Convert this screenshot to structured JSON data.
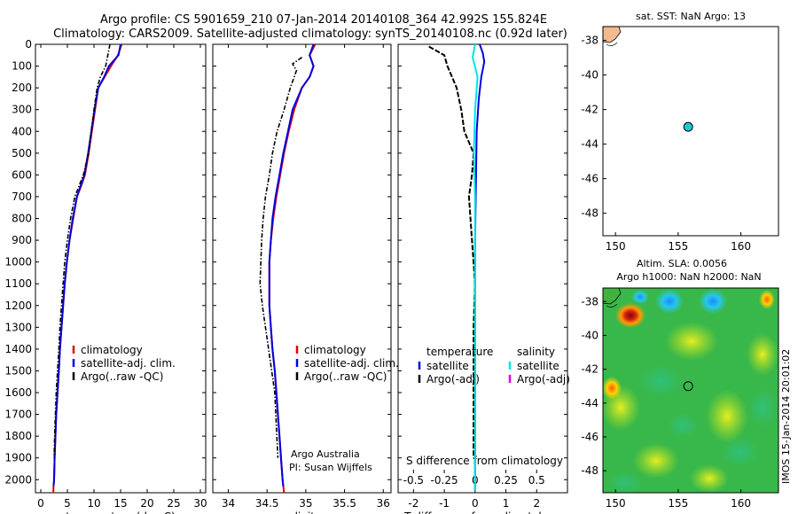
{
  "title": {
    "line1": "Argo profile: CS 5901659_210 07-Jan-2014 20140108_364 42.992S 155.824E",
    "line2": "Climatology: CARS2009. Satellite-adjusted climatology: synTS_20140108.nc (0.92d later)"
  },
  "side_label": "IMOS 15-Jan-2014 20:01:02",
  "credit": {
    "line1": "Argo Australia",
    "line2": "PI: Susan Wijffels"
  },
  "colors": {
    "climatology": "#e00000",
    "satellite": "#0000e0",
    "argo": "#000000",
    "cyan": "#00e5e5",
    "magenta": "#e000e0",
    "land": "#f4b98f"
  },
  "chart_data": [
    {
      "type": "line",
      "xlabel": "temperature (deg C)",
      "ylabel": "",
      "xlim": [
        -1,
        31
      ],
      "ylim": [
        2060,
        0
      ],
      "xticks": [
        0,
        5,
        10,
        15,
        20,
        25,
        30
      ],
      "yticks": [
        0,
        100,
        200,
        300,
        400,
        500,
        600,
        700,
        800,
        900,
        1000,
        1100,
        1200,
        1300,
        1400,
        1500,
        1600,
        1700,
        1800,
        1900,
        2000
      ],
      "legend": [
        "climatology",
        "satellite-adj. clim.",
        "Argo(..raw -QC)"
      ],
      "series": [
        {
          "name": "climatology",
          "x": [
            15.2,
            14.5,
            13.2,
            12.0,
            10.8,
            10.2,
            9.6,
            9.0,
            8.3,
            7.6,
            6.8,
            6.1,
            5.4,
            4.9,
            4.5,
            4.2,
            3.9,
            3.6,
            3.4,
            3.15,
            2.9,
            2.75,
            2.6,
            2.5,
            2.4,
            2.35
          ],
          "y": [
            0,
            50,
            100,
            150,
            200,
            300,
            400,
            500,
            600,
            650,
            700,
            800,
            900,
            1000,
            1100,
            1200,
            1300,
            1400,
            1500,
            1600,
            1700,
            1800,
            1900,
            2000,
            2030,
            2060
          ]
        },
        {
          "name": "satellite-adj. clim.",
          "x": [
            15.0,
            14.6,
            12.8,
            11.9,
            10.8,
            10.1,
            9.5,
            8.9,
            8.2,
            7.5,
            6.8,
            6.0,
            5.4,
            4.9,
            4.5,
            4.2,
            3.9,
            3.6,
            3.4,
            3.15,
            2.9,
            2.75,
            2.6,
            2.5,
            2.4
          ],
          "y": [
            0,
            50,
            100,
            150,
            200,
            300,
            400,
            500,
            600,
            650,
            700,
            800,
            900,
            1000,
            1100,
            1200,
            1300,
            1400,
            1500,
            1600,
            1700,
            1800,
            1900,
            2000,
            2030
          ]
        },
        {
          "name": "Argo(..raw -QC)",
          "x": [
            13.0,
            12.6,
            12.2,
            11.2,
            10.6,
            10.0,
            9.5,
            9.0,
            8.5,
            8.0,
            7.2,
            6.4,
            5.6,
            5.0,
            4.5,
            4.2,
            3.9,
            3.6,
            3.4,
            3.15,
            2.9,
            2.75,
            2.6,
            2.5
          ],
          "y": [
            0,
            50,
            100,
            150,
            200,
            300,
            400,
            500,
            550,
            600,
            650,
            700,
            800,
            900,
            1000,
            1100,
            1200,
            1300,
            1400,
            1500,
            1600,
            1700,
            1800,
            1900
          ]
        }
      ]
    },
    {
      "type": "line",
      "xlabel": "salinity",
      "ylabel": "",
      "xlim": [
        33.8,
        36.1
      ],
      "ylim": [
        2060,
        0
      ],
      "xticks": [
        34,
        34.5,
        35,
        35.5,
        36
      ],
      "xticklabels": [
        "34",
        "34.5",
        "35",
        "35.5",
        "36"
      ],
      "legend": [
        "climatology",
        "satellite-adj. clim.",
        "Argo(..raw -QC)"
      ],
      "series": [
        {
          "name": "climatology",
          "x": [
            35.12,
            35.05,
            35.1,
            35.05,
            34.95,
            34.85,
            34.78,
            34.72,
            34.67,
            34.62,
            34.58,
            34.55,
            34.53,
            34.53,
            34.53,
            34.55,
            34.57,
            34.6,
            34.62,
            34.64,
            34.66,
            34.68,
            34.7,
            34.71,
            34.72
          ],
          "y": [
            0,
            50,
            100,
            150,
            200,
            300,
            400,
            500,
            600,
            700,
            800,
            900,
            1000,
            1100,
            1200,
            1300,
            1400,
            1500,
            1600,
            1700,
            1800,
            1900,
            2000,
            2030,
            2060
          ]
        },
        {
          "name": "satellite-adj. clim.",
          "x": [
            35.1,
            35.05,
            35.1,
            35.05,
            34.95,
            34.83,
            34.77,
            34.71,
            34.66,
            34.61,
            34.57,
            34.55,
            34.53,
            34.53,
            34.53,
            34.55,
            34.57,
            34.6,
            34.62,
            34.64,
            34.66,
            34.68,
            34.7,
            34.71
          ],
          "y": [
            0,
            50,
            100,
            150,
            200,
            300,
            400,
            500,
            600,
            700,
            800,
            900,
            1000,
            1100,
            1200,
            1300,
            1400,
            1500,
            1600,
            1700,
            1800,
            1900,
            2000,
            2030
          ]
        },
        {
          "name": "Argo(..raw -QC)",
          "x": [
            34.95,
            34.83,
            34.88,
            34.8,
            34.72,
            34.63,
            34.57,
            34.53,
            34.48,
            34.45,
            34.43,
            34.42,
            34.41,
            34.44,
            34.48,
            34.52,
            34.56,
            34.6,
            34.64
          ],
          "y": [
            60,
            90,
            120,
            200,
            300,
            400,
            500,
            600,
            700,
            800,
            900,
            1000,
            1100,
            1200,
            1300,
            1400,
            1500,
            1600,
            1900
          ]
        }
      ]
    },
    {
      "type": "line",
      "xlabel": "T difference from climatology",
      "x2label": "S difference from climatology",
      "ylabel": "",
      "xlim": [
        -2.5,
        3
      ],
      "x2lim": [
        -0.625,
        0.75
      ],
      "ylim": [
        2060,
        0
      ],
      "xticks": [
        -2,
        -1,
        0,
        1,
        2
      ],
      "x2ticks": [
        -0.5,
        -0.25,
        0,
        0.25,
        0.5
      ],
      "x2ticklabels": [
        "-0.5",
        "-0.25",
        "0",
        "0.25",
        "0.5"
      ],
      "legend_temperature": {
        "heading": "temperature",
        "items": [
          "satellite",
          "Argo(-adj)"
        ]
      },
      "legend_salinity": {
        "heading": "salinity",
        "items": [
          "satellite",
          "Argo(-adj)"
        ]
      },
      "series": [
        {
          "name": "temperature satellite",
          "x": [
            0.15,
            0.25,
            0.3,
            0.2,
            0.12,
            0.05,
            0.03,
            0.0,
            0.0,
            0.0,
            0.0
          ],
          "y": [
            0,
            40,
            80,
            150,
            250,
            400,
            600,
            900,
            1300,
            1700,
            2050
          ]
        },
        {
          "name": "temperature Argo(-adj)",
          "x": [
            -1.5,
            -1.0,
            -0.9,
            -0.6,
            -0.45,
            -0.35,
            -0.2,
            -0.05,
            -0.1,
            -0.2,
            -0.1,
            0.0,
            -0.05,
            -0.05,
            -0.05
          ],
          "y": [
            10,
            50,
            100,
            200,
            300,
            400,
            450,
            500,
            600,
            700,
            900,
            1100,
            1300,
            1500,
            1900
          ]
        },
        {
          "name": "salinity satellite",
          "x": [
            0.0,
            -0.02,
            0.02,
            0.0,
            -0.01,
            0.0,
            0.0,
            0.0,
            0.0,
            0.0
          ],
          "y": [
            0,
            60,
            150,
            300,
            500,
            700,
            1000,
            1300,
            1700,
            2050
          ]
        }
      ]
    },
    {
      "type": "scatter",
      "title": "sat. SST: NaN Argo: 13",
      "xlim": [
        149,
        163
      ],
      "ylim": [
        -49.3,
        -37.2
      ],
      "xticks": [
        150,
        155,
        160
      ],
      "yticks": [
        -38,
        -40,
        -42,
        -44,
        -46,
        -48
      ],
      "point": {
        "x": 155.8,
        "y": -43.0
      }
    },
    {
      "type": "heatmap",
      "title": "Altim. SLA: 0.0056",
      "subtitle": "Argo h1000: NaN h2000: NaN",
      "xlim": [
        149,
        163
      ],
      "ylim": [
        -49.3,
        -37.2
      ],
      "xticks": [
        150,
        155,
        160
      ],
      "yticks": [
        -38,
        -40,
        -42,
        -44,
        -46,
        -48
      ],
      "point": {
        "x": 155.8,
        "y": -43.0
      }
    }
  ]
}
